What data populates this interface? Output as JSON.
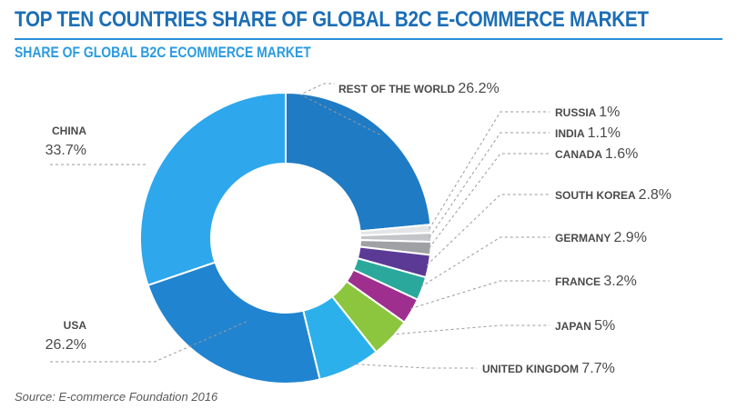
{
  "header": {
    "title": "TOP TEN COUNTRIES SHARE OF GLOBAL B2C E-COMMERCE MARKET",
    "subtitle": "SHARE OF GLOBAL B2C ECOMMERCE MARKET"
  },
  "source": "Source: E-commerce Foundation 2016",
  "chart_data": {
    "type": "pie",
    "donut": true,
    "title": "TOP TEN COUNTRIES SHARE OF GLOBAL B2C E-COMMERCE MARKET",
    "subtitle": "SHARE OF GLOBAL B2C ECOMMERCE MARKET",
    "unit": "%",
    "slices": [
      {
        "name": "REST OF THE WORLD",
        "value": 26.2,
        "color": "#1f7bc4"
      },
      {
        "name": "RUSSIA",
        "value": 1,
        "color": "#e2e4e6"
      },
      {
        "name": "INDIA",
        "value": 1.1,
        "color": "#c3c5c8"
      },
      {
        "name": "CANADA",
        "value": 1.6,
        "color": "#9fa1a4"
      },
      {
        "name": "SOUTH KOREA",
        "value": 2.8,
        "color": "#5b3a96"
      },
      {
        "name": "GERMANY",
        "value": 2.9,
        "color": "#2aa89c"
      },
      {
        "name": "FRANCE",
        "value": 3.2,
        "color": "#9e2f8e"
      },
      {
        "name": "JAPAN",
        "value": 5,
        "color": "#8cc63f"
      },
      {
        "name": "UNITED KINGDOM",
        "value": 7.7,
        "color": "#2bb0ec"
      },
      {
        "name": "USA",
        "value": 26.2,
        "color": "#2184d0"
      },
      {
        "name": "CHINA",
        "value": 33.7,
        "color": "#2ea7ec"
      }
    ]
  }
}
